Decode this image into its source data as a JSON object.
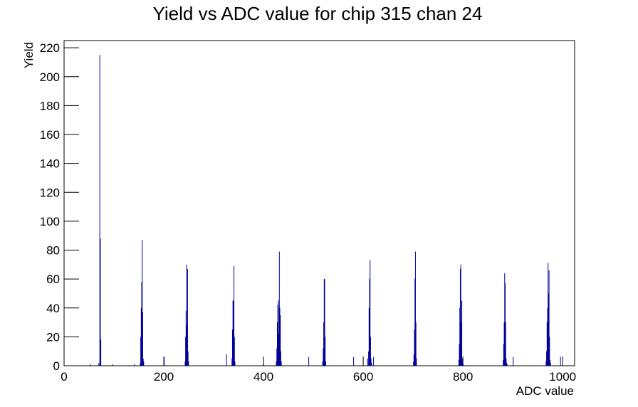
{
  "chart_data": {
    "type": "histogram",
    "title": "Yield vs ADC value for chip 315 chan 24",
    "x_label": "ADC value",
    "y_label": "Yield",
    "color": "#000099",
    "x": [
      52,
      69,
      71,
      72,
      73,
      97,
      140,
      152,
      153,
      154,
      155,
      156,
      157,
      158,
      159,
      200,
      242,
      243,
      244,
      245,
      246,
      247,
      248,
      249,
      325,
      336,
      337,
      338,
      339,
      340,
      341,
      342,
      400,
      425,
      426,
      427,
      428,
      429,
      430,
      431,
      432,
      433,
      434,
      435,
      490,
      518,
      519,
      520,
      521,
      522,
      523,
      524,
      580,
      608,
      610,
      611,
      612,
      613,
      614,
      615,
      616,
      620,
      700,
      701,
      702,
      703,
      704,
      705,
      706,
      791,
      792,
      793,
      794,
      795,
      796,
      797,
      798,
      799,
      800,
      880,
      881,
      882,
      883,
      884,
      885,
      886,
      887,
      888,
      900,
      966,
      967,
      968,
      969,
      970,
      971,
      972,
      973,
      974,
      975,
      995
    ],
    "values": [
      1,
      2,
      215,
      88,
      18,
      1,
      1,
      2,
      20,
      40,
      58,
      87,
      37,
      5,
      3,
      6,
      3,
      20,
      38,
      70,
      28,
      67,
      10,
      3,
      8,
      5,
      25,
      45,
      45,
      69,
      20,
      3,
      1,
      3,
      12,
      30,
      42,
      45,
      22,
      79,
      40,
      35,
      10,
      3,
      6,
      3,
      12,
      30,
      60,
      60,
      20,
      3,
      6,
      5,
      10,
      40,
      60,
      73,
      20,
      5,
      2,
      6,
      3,
      8,
      25,
      60,
      79,
      30,
      5,
      4,
      15,
      40,
      67,
      70,
      30,
      45,
      5,
      2,
      1,
      4,
      15,
      30,
      64,
      57,
      30,
      5,
      2,
      1,
      6,
      3,
      10,
      30,
      40,
      71,
      50,
      66,
      20,
      4,
      2,
      6
    ],
    "xlim": [
      0,
      1024
    ],
    "ylim": [
      0,
      225
    ],
    "xticks": [
      0,
      200,
      400,
      600,
      800,
      1000
    ],
    "yticks": [
      0,
      20,
      40,
      60,
      80,
      100,
      120,
      140,
      160,
      180,
      200,
      220
    ]
  }
}
